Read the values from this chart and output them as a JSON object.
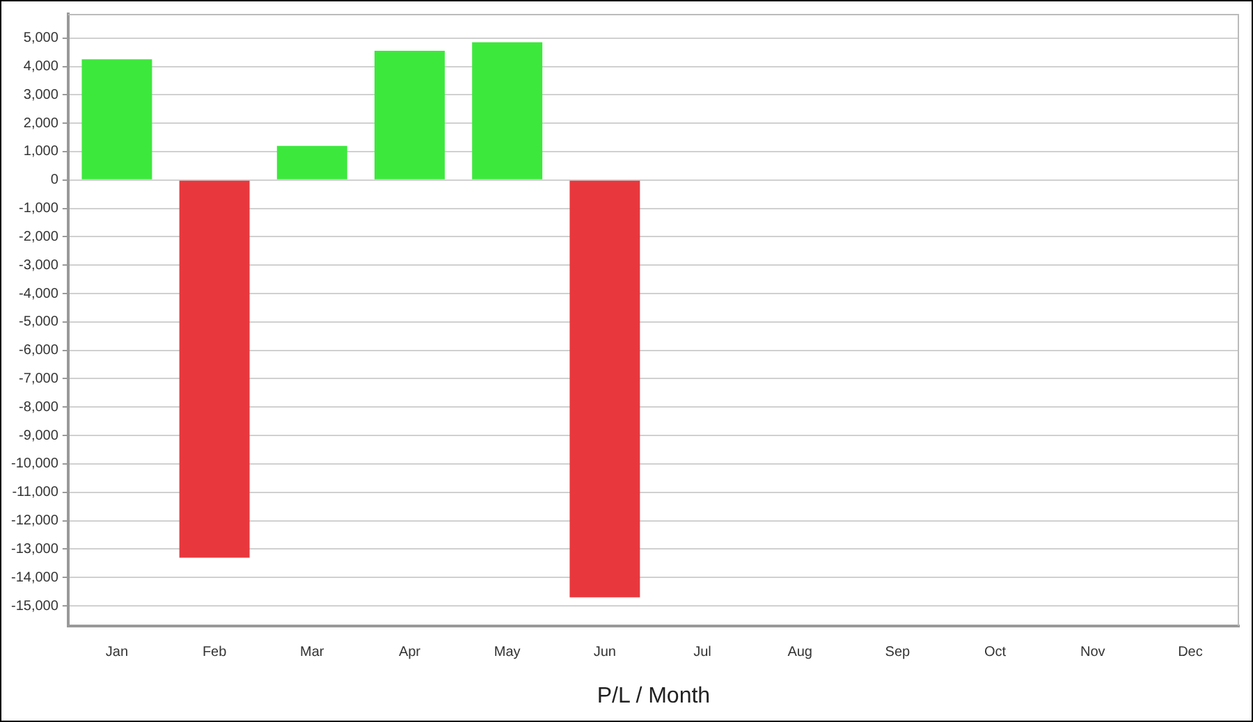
{
  "chart_data": {
    "type": "bar",
    "xlabel": "P/L / Month",
    "categories": [
      "Jan",
      "Feb",
      "Mar",
      "Apr",
      "May",
      "Jun",
      "Jul",
      "Aug",
      "Sep",
      "Oct",
      "Nov",
      "Dec"
    ],
    "values": [
      4250,
      -13300,
      1200,
      4550,
      4850,
      -14700,
      null,
      null,
      null,
      null,
      null,
      null
    ],
    "colors": [
      "#3de83d",
      "#e8383d",
      "#3de83d",
      "#3de83d",
      "#3de83d",
      "#e8383d",
      "#3de83d",
      "#3de83d",
      "#3de83d",
      "#3de83d",
      "#3de83d",
      "#3de83d"
    ],
    "ylim": [
      -15700,
      5850
    ],
    "yticks": [
      {
        "value": 5000,
        "label": "5,000"
      },
      {
        "value": 4000,
        "label": "4,000"
      },
      {
        "value": 3000,
        "label": "3,000"
      },
      {
        "value": 2000,
        "label": "2,000"
      },
      {
        "value": 1000,
        "label": "1,000"
      },
      0,
      {
        "value": -1000,
        "label": "-1,000"
      },
      {
        "value": -2000,
        "label": "-2,000"
      },
      {
        "value": -3000,
        "label": "-3,000"
      },
      {
        "value": -4000,
        "label": "-4,000"
      },
      {
        "value": -5000,
        "label": "-5,000"
      },
      {
        "value": -6000,
        "label": "-6,000"
      },
      {
        "value": -7000,
        "label": "-7,000"
      },
      {
        "value": -8000,
        "label": "-8,000"
      },
      {
        "value": -9000,
        "label": "-9,000"
      },
      {
        "value": -10000,
        "label": "-10,000"
      },
      {
        "value": -11000,
        "label": "-11,000"
      },
      {
        "value": -12000,
        "label": "-12,000"
      },
      {
        "value": -13000,
        "label": "-13,000"
      },
      {
        "value": -14000,
        "label": "-14,000"
      },
      {
        "value": -15000,
        "label": "-15,000"
      }
    ],
    "grid": "y",
    "legend": false
  }
}
